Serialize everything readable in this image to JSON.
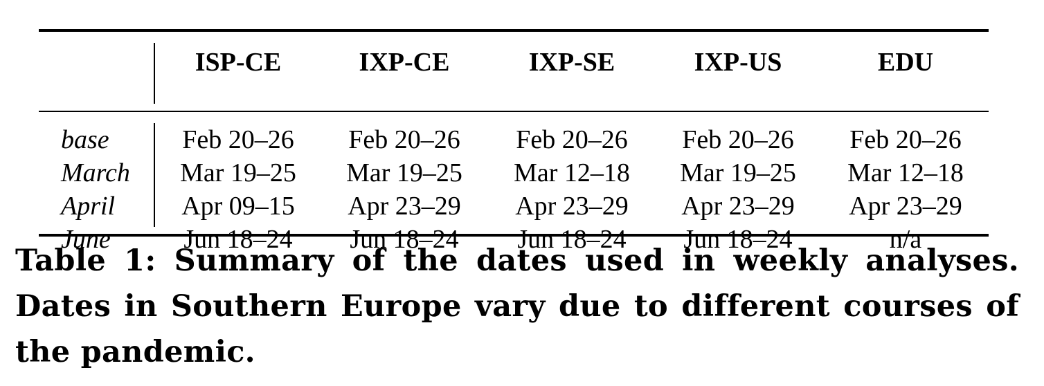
{
  "table": {
    "columns": [
      "ISP-CE",
      "IXP-CE",
      "IXP-SE",
      "IXP-US",
      "EDU"
    ],
    "rows": [
      {
        "label": "base",
        "cells": [
          "Feb 20–26",
          "Feb 20–26",
          "Feb 20–26",
          "Feb 20–26",
          "Feb 20–26"
        ]
      },
      {
        "label": "March",
        "cells": [
          "Mar 19–25",
          "Mar 19–25",
          "Mar 12–18",
          "Mar 19–25",
          "Mar 12–18"
        ]
      },
      {
        "label": "April",
        "cells": [
          "Apr 09–15",
          "Apr 23–29",
          "Apr 23–29",
          "Apr 23–29",
          "Apr 23–29"
        ]
      },
      {
        "label": "June",
        "cells": [
          "Jun 18–24",
          "Jun 18–24",
          "Jun 18–24",
          "Jun 18–24",
          "n/a"
        ]
      }
    ]
  },
  "caption": "Table 1: Summary of the dates used in weekly analyses. Dates in Southern Europe vary due to different courses of the pandemic."
}
